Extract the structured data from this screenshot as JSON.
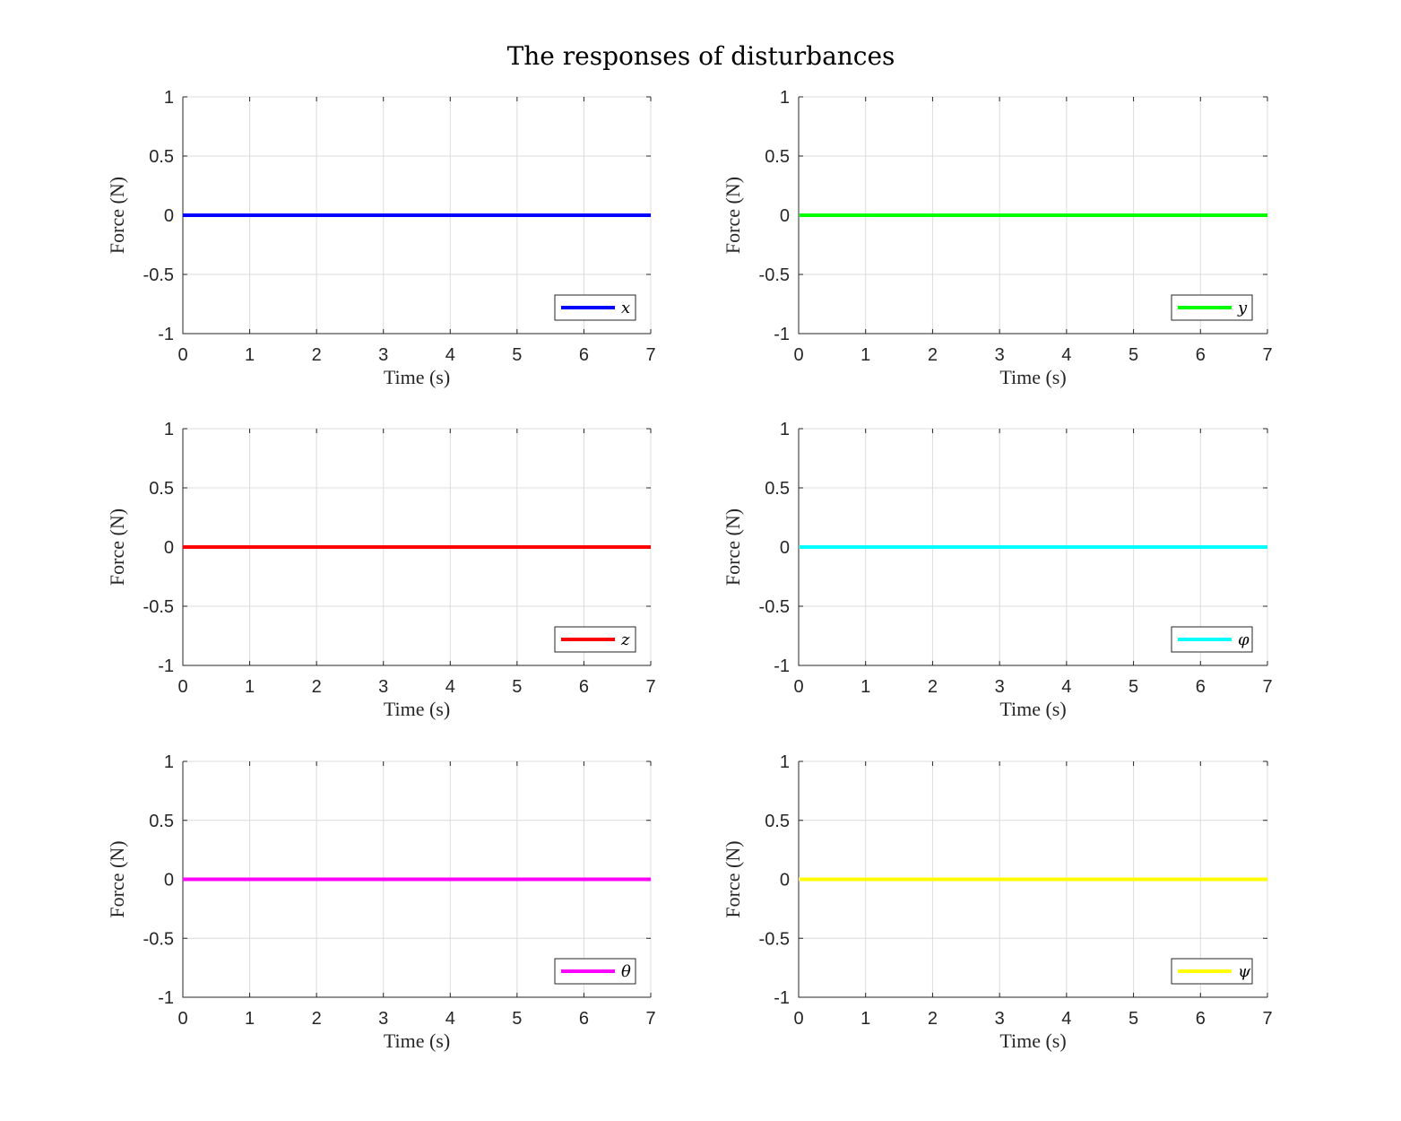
{
  "figure": {
    "title": "The responses of disturbances",
    "background": "#ffffff"
  },
  "chart_data": [
    {
      "type": "line",
      "xlabel": "Time (s)",
      "ylabel": "Force (N)",
      "xlim": [
        0,
        7
      ],
      "ylim": [
        -1,
        1
      ],
      "xticks": [
        "0",
        "1",
        "2",
        "3",
        "4",
        "5",
        "6",
        "7"
      ],
      "yticks": [
        "-1",
        "-0.5",
        "0",
        "0.5",
        "1"
      ],
      "grid": true,
      "legend_position": "bottom-right",
      "series": [
        {
          "name": "x",
          "color": "#0000ff",
          "x": [
            0,
            7
          ],
          "y": [
            0,
            0
          ]
        }
      ]
    },
    {
      "type": "line",
      "xlabel": "Time (s)",
      "ylabel": "Force (N)",
      "xlim": [
        0,
        7
      ],
      "ylim": [
        -1,
        1
      ],
      "xticks": [
        "0",
        "1",
        "2",
        "3",
        "4",
        "5",
        "6",
        "7"
      ],
      "yticks": [
        "-1",
        "-0.5",
        "0",
        "0.5",
        "1"
      ],
      "grid": true,
      "legend_position": "bottom-right",
      "series": [
        {
          "name": "y",
          "color": "#00ff00",
          "x": [
            0,
            7
          ],
          "y": [
            0,
            0
          ]
        }
      ]
    },
    {
      "type": "line",
      "xlabel": "Time (s)",
      "ylabel": "Force (N)",
      "xlim": [
        0,
        7
      ],
      "ylim": [
        -1,
        1
      ],
      "xticks": [
        "0",
        "1",
        "2",
        "3",
        "4",
        "5",
        "6",
        "7"
      ],
      "yticks": [
        "-1",
        "-0.5",
        "0",
        "0.5",
        "1"
      ],
      "grid": true,
      "legend_position": "bottom-right",
      "series": [
        {
          "name": "z",
          "color": "#ff0000",
          "x": [
            0,
            7
          ],
          "y": [
            0,
            0
          ]
        }
      ]
    },
    {
      "type": "line",
      "xlabel": "Time (s)",
      "ylabel": "Force (N)",
      "xlim": [
        0,
        7
      ],
      "ylim": [
        -1,
        1
      ],
      "xticks": [
        "0",
        "1",
        "2",
        "3",
        "4",
        "5",
        "6",
        "7"
      ],
      "yticks": [
        "-1",
        "-0.5",
        "0",
        "0.5",
        "1"
      ],
      "grid": true,
      "legend_position": "bottom-right",
      "series": [
        {
          "name": "φ",
          "color": "#00ffff",
          "x": [
            0,
            7
          ],
          "y": [
            0,
            0
          ]
        }
      ]
    },
    {
      "type": "line",
      "xlabel": "Time (s)",
      "ylabel": "Force (N)",
      "xlim": [
        0,
        7
      ],
      "ylim": [
        -1,
        1
      ],
      "xticks": [
        "0",
        "1",
        "2",
        "3",
        "4",
        "5",
        "6",
        "7"
      ],
      "yticks": [
        "-1",
        "-0.5",
        "0",
        "0.5",
        "1"
      ],
      "grid": true,
      "legend_position": "bottom-right",
      "series": [
        {
          "name": "θ",
          "color": "#ff00ff",
          "x": [
            0,
            7
          ],
          "y": [
            0,
            0
          ]
        }
      ]
    },
    {
      "type": "line",
      "xlabel": "Time (s)",
      "ylabel": "Force (N)",
      "xlim": [
        0,
        7
      ],
      "ylim": [
        -1,
        1
      ],
      "xticks": [
        "0",
        "1",
        "2",
        "3",
        "4",
        "5",
        "6",
        "7"
      ],
      "yticks": [
        "-1",
        "-0.5",
        "0",
        "0.5",
        "1"
      ],
      "grid": true,
      "legend_position": "bottom-right",
      "series": [
        {
          "name": "ψ",
          "color": "#ffff00",
          "x": [
            0,
            7
          ],
          "y": [
            0,
            0
          ]
        }
      ]
    }
  ]
}
